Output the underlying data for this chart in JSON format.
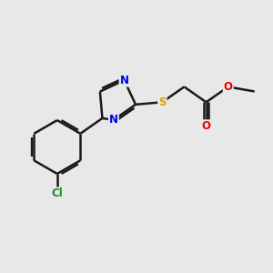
{
  "background_color": "#e8e8e8",
  "bond_color": "#1a1a1a",
  "bond_width": 1.8,
  "atoms": {
    "Cl": {
      "color": "#228B22",
      "fontsize": 8.5
    },
    "N": {
      "color": "#0000EE",
      "fontsize": 8.5
    },
    "S": {
      "color": "#ccaa00",
      "fontsize": 8.5
    },
    "O": {
      "color": "#ee0000",
      "fontsize": 8.5
    }
  },
  "figsize": [
    3.0,
    3.0
  ],
  "dpi": 100,
  "xlim": [
    -1.0,
    1.55
  ],
  "ylim": [
    -0.95,
    0.75
  ]
}
